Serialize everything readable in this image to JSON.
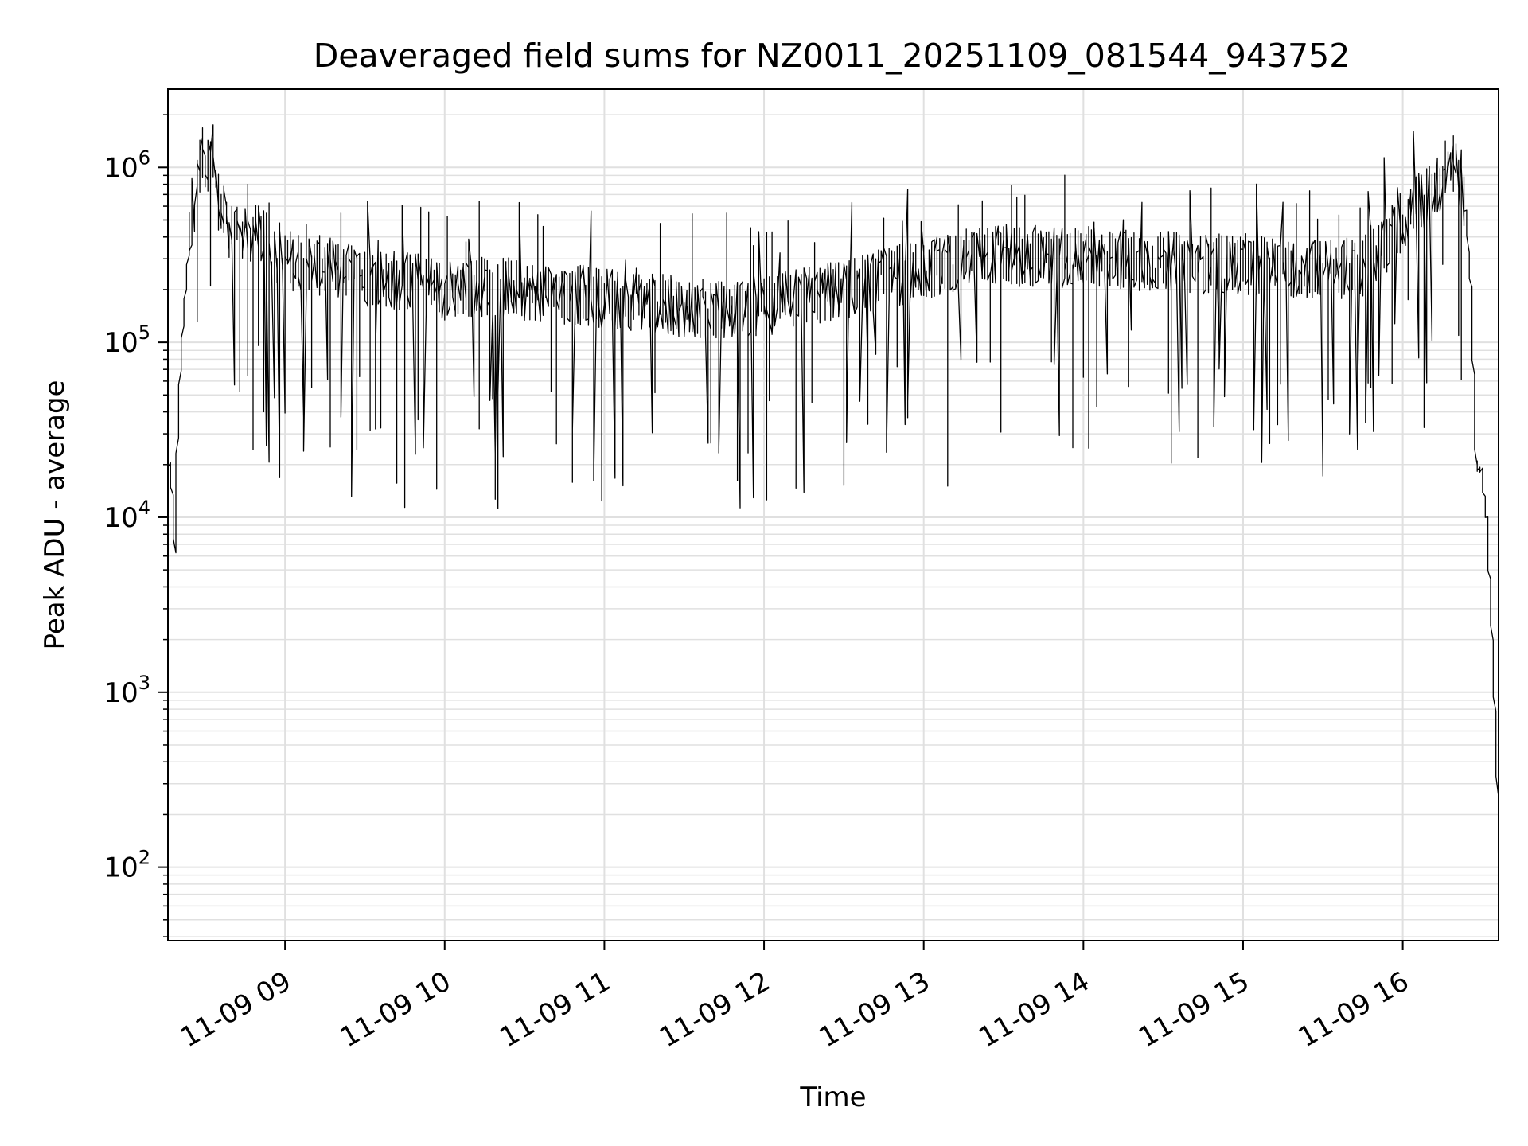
{
  "chart_data": {
    "type": "line",
    "title": "Deaveraged field sums for NZ0011_20251109_081544_943752",
    "xlabel": "Time",
    "ylabel": "Peak ADU - average",
    "y_scale": "log",
    "ylim": [
      38,
      2800000
    ],
    "xlim": [
      "2025-11-09T08:16",
      "2025-11-09T16:36"
    ],
    "grid": true,
    "line_color": "#000000",
    "grid_color": "#e0e0e0",
    "x_ticks": [
      {
        "label": "11-09 09",
        "value": "2025-11-09T09:00"
      },
      {
        "label": "11-09 10",
        "value": "2025-11-09T10:00"
      },
      {
        "label": "11-09 11",
        "value": "2025-11-09T11:00"
      },
      {
        "label": "11-09 12",
        "value": "2025-11-09T12:00"
      },
      {
        "label": "11-09 13",
        "value": "2025-11-09T13:00"
      },
      {
        "label": "11-09 14",
        "value": "2025-11-09T14:00"
      },
      {
        "label": "11-09 15",
        "value": "2025-11-09T15:00"
      },
      {
        "label": "11-09 16",
        "value": "2025-11-09T16:00"
      }
    ],
    "y_ticks": [
      {
        "base": "10",
        "exp": "2",
        "value": 100
      },
      {
        "base": "10",
        "exp": "3",
        "value": 1000
      },
      {
        "base": "10",
        "exp": "4",
        "value": 10000
      },
      {
        "base": "10",
        "exp": "5",
        "value": 100000
      },
      {
        "base": "10",
        "exp": "6",
        "value": 1000000
      }
    ],
    "series": [
      {
        "x": [
          "2025-11-09T08:16",
          "2025-11-09T08:17",
          "2025-11-09T08:18",
          "2025-11-09T08:19",
          "2025-11-09T08:20",
          "2025-11-09T08:21",
          "2025-11-09T08:23",
          "2025-11-09T08:25",
          "2025-11-09T08:27",
          "2025-11-09T08:29",
          "2025-11-09T08:31",
          "2025-11-09T08:33",
          "2025-11-09T08:35",
          "2025-11-09T08:37",
          "2025-11-09T08:39",
          "2025-11-09T08:42",
          "2025-11-09T08:45",
          "2025-11-09T08:50",
          "2025-11-09T08:55",
          "2025-11-09T09:00",
          "2025-11-09T09:10",
          "2025-11-09T09:20",
          "2025-11-09T09:30",
          "2025-11-09T09:40",
          "2025-11-09T09:50",
          "2025-11-09T10:00",
          "2025-11-09T10:15",
          "2025-11-09T10:30",
          "2025-11-09T10:45",
          "2025-11-09T11:00",
          "2025-11-09T11:15",
          "2025-11-09T11:30",
          "2025-11-09T11:45",
          "2025-11-09T12:00",
          "2025-11-09T12:15",
          "2025-11-09T12:30",
          "2025-11-09T12:45",
          "2025-11-09T13:00",
          "2025-11-09T13:15",
          "2025-11-09T13:30",
          "2025-11-09T13:45",
          "2025-11-09T14:00",
          "2025-11-09T14:15",
          "2025-11-09T14:30",
          "2025-11-09T14:45",
          "2025-11-09T15:00",
          "2025-11-09T15:15",
          "2025-11-09T15:30",
          "2025-11-09T15:45",
          "2025-11-09T15:55",
          "2025-11-09T16:00",
          "2025-11-09T16:05",
          "2025-11-09T16:10",
          "2025-11-09T16:15",
          "2025-11-09T16:18",
          "2025-11-09T16:21",
          "2025-11-09T16:24",
          "2025-11-09T16:26",
          "2025-11-09T16:28",
          "2025-11-09T16:30",
          "2025-11-09T16:32",
          "2025-11-09T16:34",
          "2025-11-09T16:35",
          "2025-11-09T16:36"
        ],
        "values": [
          15000,
          20000,
          13000,
          6500,
          30000,
          70000,
          200000,
          500000,
          800000,
          1150000,
          1050000,
          1250000,
          700000,
          550000,
          450000,
          400000,
          380000,
          420000,
          350000,
          300000,
          280000,
          260000,
          240000,
          230000,
          220000,
          200000,
          210000,
          200000,
          190000,
          180000,
          170000,
          160000,
          150000,
          160000,
          180000,
          200000,
          230000,
          260000,
          300000,
          320000,
          300000,
          310000,
          300000,
          290000,
          280000,
          280000,
          270000,
          260000,
          270000,
          380000,
          500000,
          600000,
          700000,
          850000,
          1100000,
          1000000,
          600000,
          200000,
          20000,
          18000,
          10000,
          2000,
          800,
          250
        ]
      }
    ]
  }
}
